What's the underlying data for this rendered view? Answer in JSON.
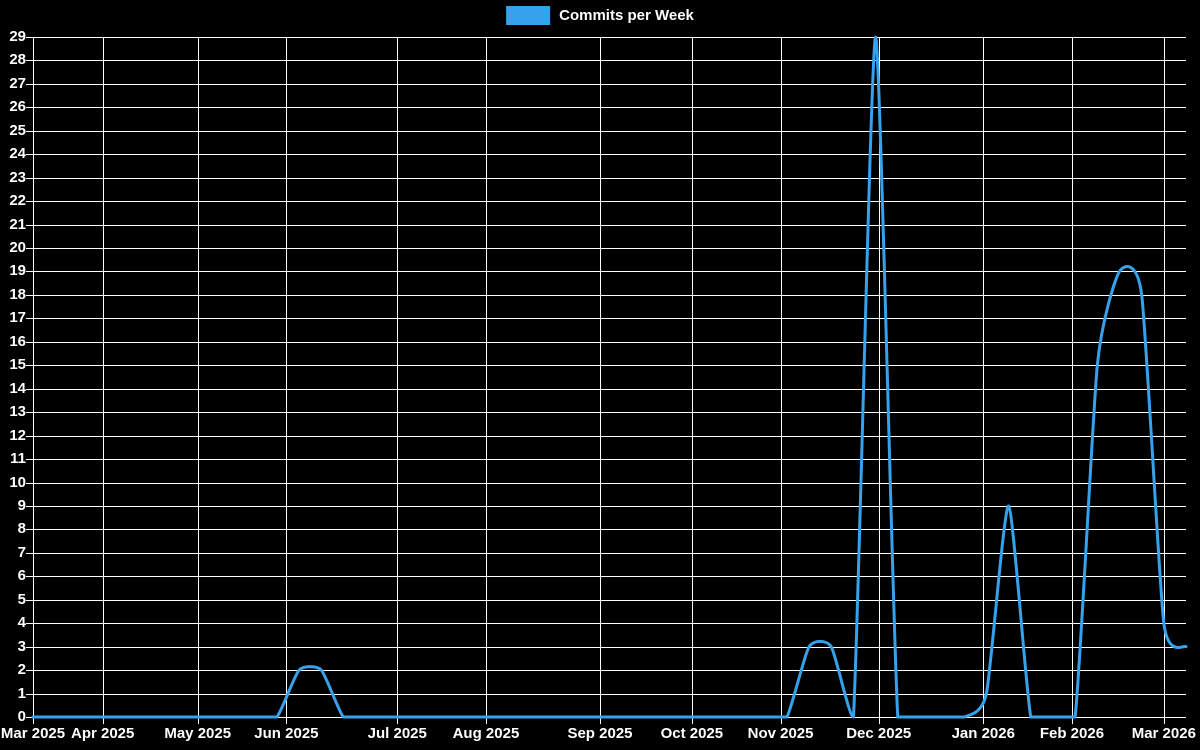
{
  "page": {
    "background_color": "#000000",
    "grid_color": "#ffffff",
    "text_color": "#ffffff"
  },
  "legend": {
    "label": "Commits per Week",
    "swatch_color": "#36a2eb"
  },
  "chart_data": {
    "type": "line",
    "title": "",
    "xlabel": "",
    "ylabel": "",
    "grid": true,
    "legend_position": "top-center",
    "background": "#000000",
    "line_color": "#36a2eb",
    "line_smoothing": "bezier",
    "y_axis": {
      "min": 0,
      "max": 29,
      "step": 1,
      "tick_labels": [
        "0",
        "1",
        "2",
        "3",
        "4",
        "5",
        "6",
        "7",
        "8",
        "9",
        "10",
        "11",
        "12",
        "13",
        "14",
        "15",
        "16",
        "17",
        "18",
        "19",
        "20",
        "21",
        "22",
        "23",
        "24",
        "25",
        "26",
        "27",
        "28",
        "29"
      ]
    },
    "x_axis": {
      "span_days": 364,
      "ticks": [
        {
          "label": "Mar 2025",
          "day": 0
        },
        {
          "label": "Apr 2025",
          "day": 22
        },
        {
          "label": "May 2025",
          "day": 52
        },
        {
          "label": "Jun 2025",
          "day": 80
        },
        {
          "label": "Jul 2025",
          "day": 115
        },
        {
          "label": "Aug 2025",
          "day": 143
        },
        {
          "label": "Sep 2025",
          "day": 179
        },
        {
          "label": "Oct 2025",
          "day": 208
        },
        {
          "label": "Nov 2025",
          "day": 236
        },
        {
          "label": "Dec 2025",
          "day": 267
        },
        {
          "label": "Jan 2026",
          "day": 300
        },
        {
          "label": "Feb 2026",
          "day": 328
        },
        {
          "label": "Mar 2026",
          "day": 357
        }
      ]
    },
    "series": [
      {
        "name": "Commits per Week",
        "color": "#36a2eb",
        "point_interval_days": 7,
        "values": [
          0,
          0,
          0,
          0,
          0,
          0,
          0,
          0,
          0,
          0,
          0,
          0,
          2,
          2,
          0,
          0,
          0,
          0,
          0,
          0,
          0,
          0,
          0,
          0,
          0,
          0,
          0,
          0,
          0,
          0,
          0,
          0,
          0,
          0,
          0,
          3,
          3,
          0,
          29,
          0,
          0,
          0,
          0,
          1,
          9,
          0,
          0,
          0,
          15,
          19,
          18,
          4,
          3
        ]
      }
    ]
  }
}
